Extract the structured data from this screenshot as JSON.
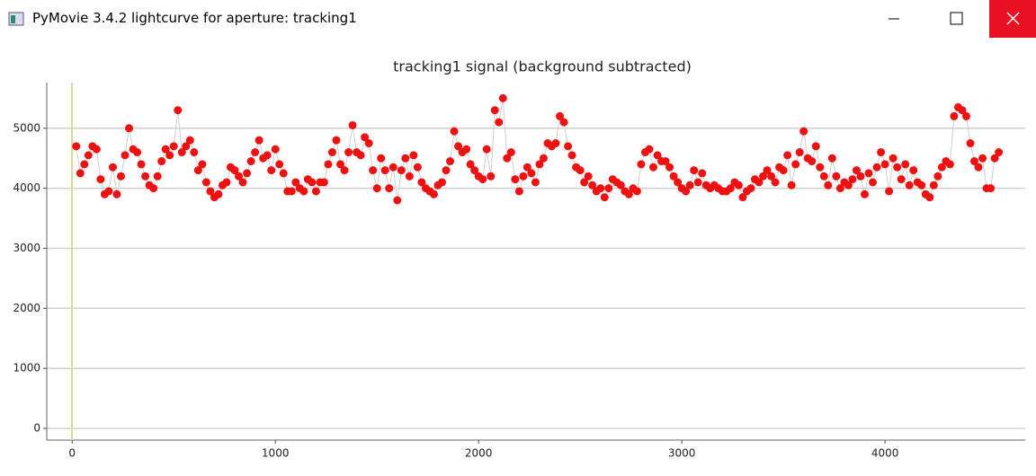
{
  "window": {
    "title": "PyMovie 3.4.2 lightcurve for aperture: tracking1"
  },
  "chart_data": {
    "type": "scatter",
    "title": "tracking1 signal (background subtracted)",
    "x": [
      20,
      40,
      60,
      80,
      100,
      120,
      140,
      160,
      180,
      200,
      220,
      240,
      260,
      280,
      300,
      320,
      340,
      360,
      380,
      400,
      420,
      440,
      460,
      480,
      500,
      520,
      540,
      560,
      580,
      600,
      620,
      640,
      660,
      680,
      700,
      720,
      740,
      760,
      780,
      800,
      820,
      840,
      860,
      880,
      900,
      920,
      940,
      960,
      980,
      1000,
      1020,
      1040,
      1060,
      1080,
      1100,
      1120,
      1140,
      1160,
      1180,
      1200,
      1220,
      1240,
      1260,
      1280,
      1300,
      1320,
      1340,
      1360,
      1380,
      1400,
      1420,
      1440,
      1460,
      1480,
      1500,
      1520,
      1540,
      1560,
      1580,
      1600,
      1620,
      1640,
      1660,
      1680,
      1700,
      1720,
      1740,
      1760,
      1780,
      1800,
      1820,
      1840,
      1860,
      1880,
      1900,
      1920,
      1940,
      1960,
      1980,
      2000,
      2020,
      2040,
      2060,
      2080,
      2100,
      2120,
      2140,
      2160,
      2180,
      2200,
      2220,
      2240,
      2260,
      2280,
      2300,
      2320,
      2340,
      2360,
      2380,
      2400,
      2420,
      2440,
      2460,
      2480,
      2500,
      2520,
      2540,
      2560,
      2580,
      2600,
      2620,
      2640,
      2660,
      2680,
      2700,
      2720,
      2740,
      2760,
      2780,
      2800,
      2820,
      2840,
      2860,
      2880,
      2900,
      2920,
      2940,
      2960,
      2980,
      3000,
      3020,
      3040,
      3060,
      3080,
      3100,
      3120,
      3140,
      3160,
      3180,
      3200,
      3220,
      3240,
      3260,
      3280,
      3300,
      3320,
      3340,
      3360,
      3380,
      3400,
      3420,
      3440,
      3460,
      3480,
      3500,
      3520,
      3540,
      3560,
      3580,
      3600,
      3620,
      3640,
      3660,
      3680,
      3700,
      3720,
      3740,
      3760,
      3780,
      3800,
      3820,
      3840,
      3860,
      3880,
      3900,
      3920,
      3940,
      3960,
      3980,
      4000,
      4020,
      4040,
      4060,
      4080,
      4100,
      4120,
      4140,
      4160,
      4180,
      4200,
      4220,
      4240,
      4260,
      4280,
      4300,
      4320,
      4340,
      4360,
      4380,
      4400,
      4420,
      4440,
      4460,
      4480,
      4500,
      4520,
      4540,
      4560
    ],
    "series": [
      {
        "color": "#ee1111",
        "values": [
          4700,
          4250,
          4400,
          4550,
          4700,
          4650,
          4150,
          3900,
          3950,
          4350,
          3900,
          4200,
          4550,
          5000,
          4650,
          4600,
          4400,
          4200,
          4050,
          4000,
          4200,
          4450,
          4650,
          4550,
          4700,
          5300,
          4600,
          4700,
          4800,
          4600,
          4300,
          4400,
          4100,
          3950,
          3850,
          3900,
          4050,
          4100,
          4350,
          4300,
          4200,
          4100,
          4250,
          4450,
          4600,
          4800,
          4500,
          4550,
          4300,
          4650,
          4400,
          4250,
          3950,
          3950,
          4100,
          4000,
          3950,
          4150,
          4100,
          3950,
          4100,
          4100,
          4400,
          4600,
          4800,
          4400,
          4300,
          4600,
          5050,
          4600,
          4550,
          4850,
          4750,
          4300,
          4000,
          4500,
          4300,
          4000,
          4350,
          3800,
          4300,
          4500,
          4200,
          4550,
          4350,
          4100,
          4000,
          3950,
          3900,
          4050,
          4100,
          4300,
          4450,
          4950,
          4700,
          4600,
          4650,
          4400,
          4300,
          4200,
          4150,
          4650,
          4200,
          5300,
          5100,
          5500,
          4500,
          4600,
          4150,
          3950,
          4200,
          4350,
          4250,
          4100,
          4400,
          4500,
          4750,
          4700,
          4750,
          5200,
          5100,
          4700,
          4550,
          4350,
          4300,
          4100,
          4200,
          4050,
          3950,
          4000,
          3850,
          4000,
          4150,
          4100,
          4050,
          3950,
          3900,
          4000,
          3950,
          4400,
          4600,
          4650,
          4350,
          4550,
          4450,
          4450,
          4350,
          4200,
          4100,
          4000,
          3950,
          4050,
          4300,
          4100,
          4250,
          4050,
          4000,
          4050,
          4000,
          3950,
          3950,
          4000,
          4100,
          4050,
          3850,
          3950,
          4000,
          4150,
          4100,
          4200,
          4300,
          4200,
          4100,
          4350,
          4300,
          4550,
          4050,
          4400,
          4600,
          4950,
          4500,
          4450,
          4700,
          4350,
          4200,
          4050,
          4500,
          4200,
          4000,
          4100,
          4050,
          4150,
          4300,
          4200,
          3900,
          4250,
          4100,
          4350,
          4600,
          4400,
          3950,
          4500,
          4350,
          4150,
          4400,
          4050,
          4300,
          4100,
          4050,
          3900,
          3850,
          4050,
          4200,
          4350,
          4450,
          4400,
          5200,
          5350,
          5300,
          5200,
          4750,
          4450,
          4350,
          4500,
          4000,
          4000,
          4500,
          4600
        ]
      }
    ],
    "xlim": [
      -125,
      4690
    ],
    "ylim": [
      -195,
      5760
    ],
    "xticks": [
      0,
      1000,
      2000,
      3000,
      4000
    ],
    "yticks": [
      0,
      1000,
      2000,
      3000,
      4000,
      5000
    ],
    "grid": true
  }
}
